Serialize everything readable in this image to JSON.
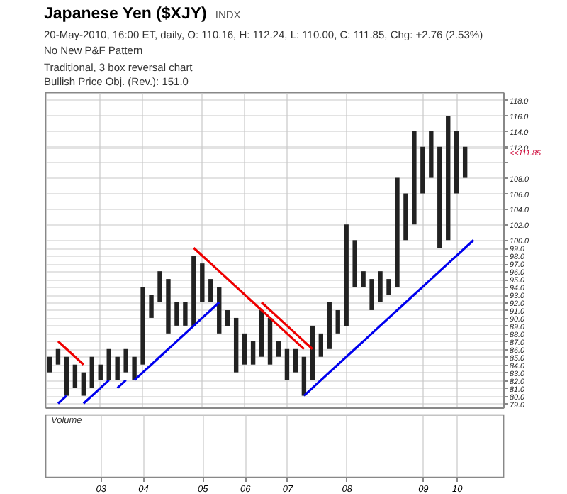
{
  "chart_data": {
    "type": "bar",
    "title": "Japanese Yen ($XJY)",
    "subtitle": "20-May-2010, 16:00 ET, daily, O: 110.16, H: 112.24, L: 110.00, C: 111.85, Chg: +2.76 (2.53%)",
    "categories": [
      null,
      null,
      null,
      null,
      null,
      null,
      "03",
      null,
      null,
      null,
      null,
      "04",
      null,
      null,
      null,
      null,
      null,
      null,
      "05",
      null,
      null,
      null,
      null,
      "06",
      null,
      null,
      null,
      null,
      "07",
      null,
      null,
      null,
      null,
      null,
      null,
      "08",
      null,
      null,
      null,
      null,
      null,
      null,
      null,
      null,
      "09",
      null,
      null,
      null,
      "10",
      null,
      null,
      null,
      null,
      null
    ],
    "series": [
      {
        "color": "#222222",
        "base": [
          83,
          84,
          80,
          81,
          80,
          81,
          82,
          82,
          82,
          83,
          82,
          84,
          90,
          92,
          88,
          89,
          89,
          89,
          92,
          92,
          88,
          89,
          83,
          84,
          84,
          85,
          84,
          85,
          82,
          83,
          80,
          82,
          85,
          86,
          88,
          89,
          94,
          94,
          91,
          92,
          93,
          94,
          100,
          102,
          106,
          108,
          99,
          100,
          106,
          108,
          null,
          null,
          null,
          null
        ],
        "values": [
          2,
          2,
          5,
          3,
          3,
          4,
          2,
          4,
          3,
          3,
          3,
          10,
          3,
          4,
          7,
          3,
          3,
          9,
          5,
          3,
          6,
          2,
          7,
          4,
          3,
          6,
          6,
          2,
          4,
          3,
          5,
          7,
          3,
          6,
          3,
          13,
          6,
          2,
          4,
          4,
          2,
          14,
          6,
          12,
          6,
          6,
          13,
          16,
          8,
          4,
          null,
          null,
          null,
          null
        ]
      },
      {
        "type": "line",
        "color": "#ee0000",
        "values": [
          null,
          87,
          86,
          85,
          84,
          null,
          null,
          null,
          null,
          null,
          null,
          null,
          null,
          null,
          null,
          null,
          null,
          null,
          null,
          null,
          null,
          null,
          null,
          null,
          null,
          null,
          null,
          null,
          null,
          null,
          null,
          null,
          null,
          null,
          null,
          null,
          null,
          null,
          null,
          null,
          null,
          null,
          null,
          null,
          null,
          null,
          null,
          null,
          null,
          null,
          null,
          null,
          null,
          null
        ]
      },
      {
        "type": "line",
        "color": "#ee0000",
        "values": [
          null,
          null,
          null,
          null,
          null,
          null,
          null,
          null,
          null,
          null,
          null,
          null,
          null,
          null,
          null,
          null,
          null,
          99,
          98,
          97,
          96,
          95,
          94,
          93,
          92,
          91,
          90,
          89,
          88,
          87,
          86,
          null,
          null,
          null,
          null,
          null,
          null,
          null,
          null,
          null,
          null,
          null,
          null,
          null,
          null,
          null,
          null,
          null,
          null,
          null,
          null,
          null,
          null,
          null
        ]
      },
      {
        "type": "line",
        "color": "#ee0000",
        "values": [
          null,
          null,
          null,
          null,
          null,
          null,
          null,
          null,
          null,
          null,
          null,
          null,
          null,
          null,
          null,
          null,
          null,
          null,
          null,
          null,
          null,
          null,
          null,
          null,
          null,
          92,
          91,
          90,
          89,
          88,
          87,
          86,
          null,
          null,
          null,
          null,
          null,
          null,
          null,
          null,
          null,
          null,
          null,
          null,
          null,
          null,
          null,
          null,
          null,
          null,
          null,
          null,
          null,
          null
        ]
      },
      {
        "type": "line",
        "color": "#0000ee",
        "values": [
          null,
          79,
          80,
          null,
          null,
          null,
          null,
          null,
          null,
          null,
          null,
          null,
          null,
          null,
          null,
          null,
          null,
          null,
          null,
          null,
          null,
          null,
          null,
          null,
          null,
          null,
          null,
          null,
          null,
          null,
          null,
          null,
          null,
          null,
          null,
          null,
          null,
          null,
          null,
          null,
          null,
          null,
          null,
          null,
          null,
          null,
          null,
          null,
          null,
          null,
          null,
          null,
          null,
          null
        ]
      },
      {
        "type": "line",
        "color": "#0000ee",
        "values": [
          null,
          null,
          null,
          null,
          79,
          80,
          81,
          82,
          null,
          null,
          null,
          null,
          null,
          null,
          null,
          null,
          null,
          null,
          null,
          null,
          null,
          null,
          null,
          null,
          null,
          null,
          null,
          null,
          null,
          null,
          null,
          null,
          null,
          null,
          null,
          null,
          null,
          null,
          null,
          null,
          null,
          null,
          null,
          null,
          null,
          null,
          null,
          null,
          null,
          null,
          null,
          null,
          null,
          null
        ]
      },
      {
        "type": "line",
        "color": "#0000ee",
        "values": [
          null,
          null,
          null,
          null,
          null,
          null,
          null,
          null,
          81,
          82,
          null,
          null,
          null,
          null,
          null,
          null,
          null,
          null,
          null,
          null,
          null,
          null,
          null,
          null,
          null,
          null,
          null,
          null,
          null,
          null,
          null,
          null,
          null,
          null,
          null,
          null,
          null,
          null,
          null,
          null,
          null,
          null,
          null,
          null,
          null,
          null,
          null,
          null,
          null,
          null,
          null,
          null,
          null,
          null
        ]
      },
      {
        "type": "line",
        "color": "#0000ee",
        "values": [
          null,
          null,
          null,
          null,
          null,
          null,
          null,
          null,
          null,
          null,
          82,
          83,
          84,
          85,
          86,
          87,
          88,
          89,
          90,
          91,
          92,
          null,
          null,
          null,
          null,
          null,
          null,
          null,
          null,
          null,
          null,
          null,
          null,
          null,
          null,
          null,
          null,
          null,
          null,
          null,
          null,
          null,
          null,
          null,
          null,
          null,
          null,
          null,
          null,
          null,
          null,
          null,
          null,
          null
        ]
      },
      {
        "type": "line",
        "color": "#0000ee",
        "values": [
          null,
          null,
          null,
          null,
          null,
          null,
          null,
          null,
          null,
          null,
          null,
          null,
          null,
          null,
          null,
          null,
          null,
          null,
          null,
          null,
          null,
          null,
          null,
          null,
          null,
          null,
          null,
          null,
          null,
          null,
          80,
          81,
          82,
          83,
          84,
          85,
          86,
          87,
          88,
          89,
          90,
          91,
          92,
          93,
          94,
          95,
          96,
          97,
          98,
          99,
          100,
          null,
          null,
          null
        ]
      }
    ],
    "ylim": [
      78.5,
      119
    ],
    "yticks": [
      {
        "value": 79,
        "label": "79.0"
      },
      {
        "value": 80,
        "label": "80.0"
      },
      {
        "value": 81,
        "label": "81.0"
      },
      {
        "value": 82,
        "label": "82.0"
      },
      {
        "value": 83,
        "label": "83.0"
      },
      {
        "value": 84,
        "label": "84.0"
      },
      {
        "value": 85,
        "label": "85.0"
      },
      {
        "value": 86,
        "label": "86.0"
      },
      {
        "value": 87,
        "label": "87.0"
      },
      {
        "value": 88,
        "label": "88.0"
      },
      {
        "value": 89,
        "label": "89.0"
      },
      {
        "value": 90,
        "label": "90.0"
      },
      {
        "value": 91,
        "label": "91.0"
      },
      {
        "value": 92,
        "label": "92.0"
      },
      {
        "value": 93,
        "label": "93.0"
      },
      {
        "value": 94,
        "label": "94.0"
      },
      {
        "value": 95,
        "label": "95.0"
      },
      {
        "value": 96,
        "label": "96.0"
      },
      {
        "value": 97,
        "label": "97.0"
      },
      {
        "value": 98,
        "label": "98.0"
      },
      {
        "value": 99,
        "label": "99.0"
      },
      {
        "value": 100,
        "label": "100.0"
      },
      {
        "value": 102,
        "label": "102.0"
      },
      {
        "value": 104,
        "label": "104.0"
      },
      {
        "value": 106,
        "label": "106.0"
      },
      {
        "value": 108,
        "label": "108.0"
      },
      {
        "value": 110,
        "label": null
      },
      {
        "value": 111.85,
        "label": "<<111.85"
      },
      {
        "value": 112,
        "label": "112.0"
      },
      {
        "value": 114,
        "label": "114.0"
      },
      {
        "value": 116,
        "label": "116.0"
      },
      {
        "value": 118,
        "label": "118.0"
      }
    ],
    "grid": true,
    "annotations": [
      "INDX",
      "No New P&F Pattern",
      "Traditional, 3 box reversal chart",
      "Bullish Price Obj. (Rev.): 151.0",
      "Volume"
    ]
  }
}
